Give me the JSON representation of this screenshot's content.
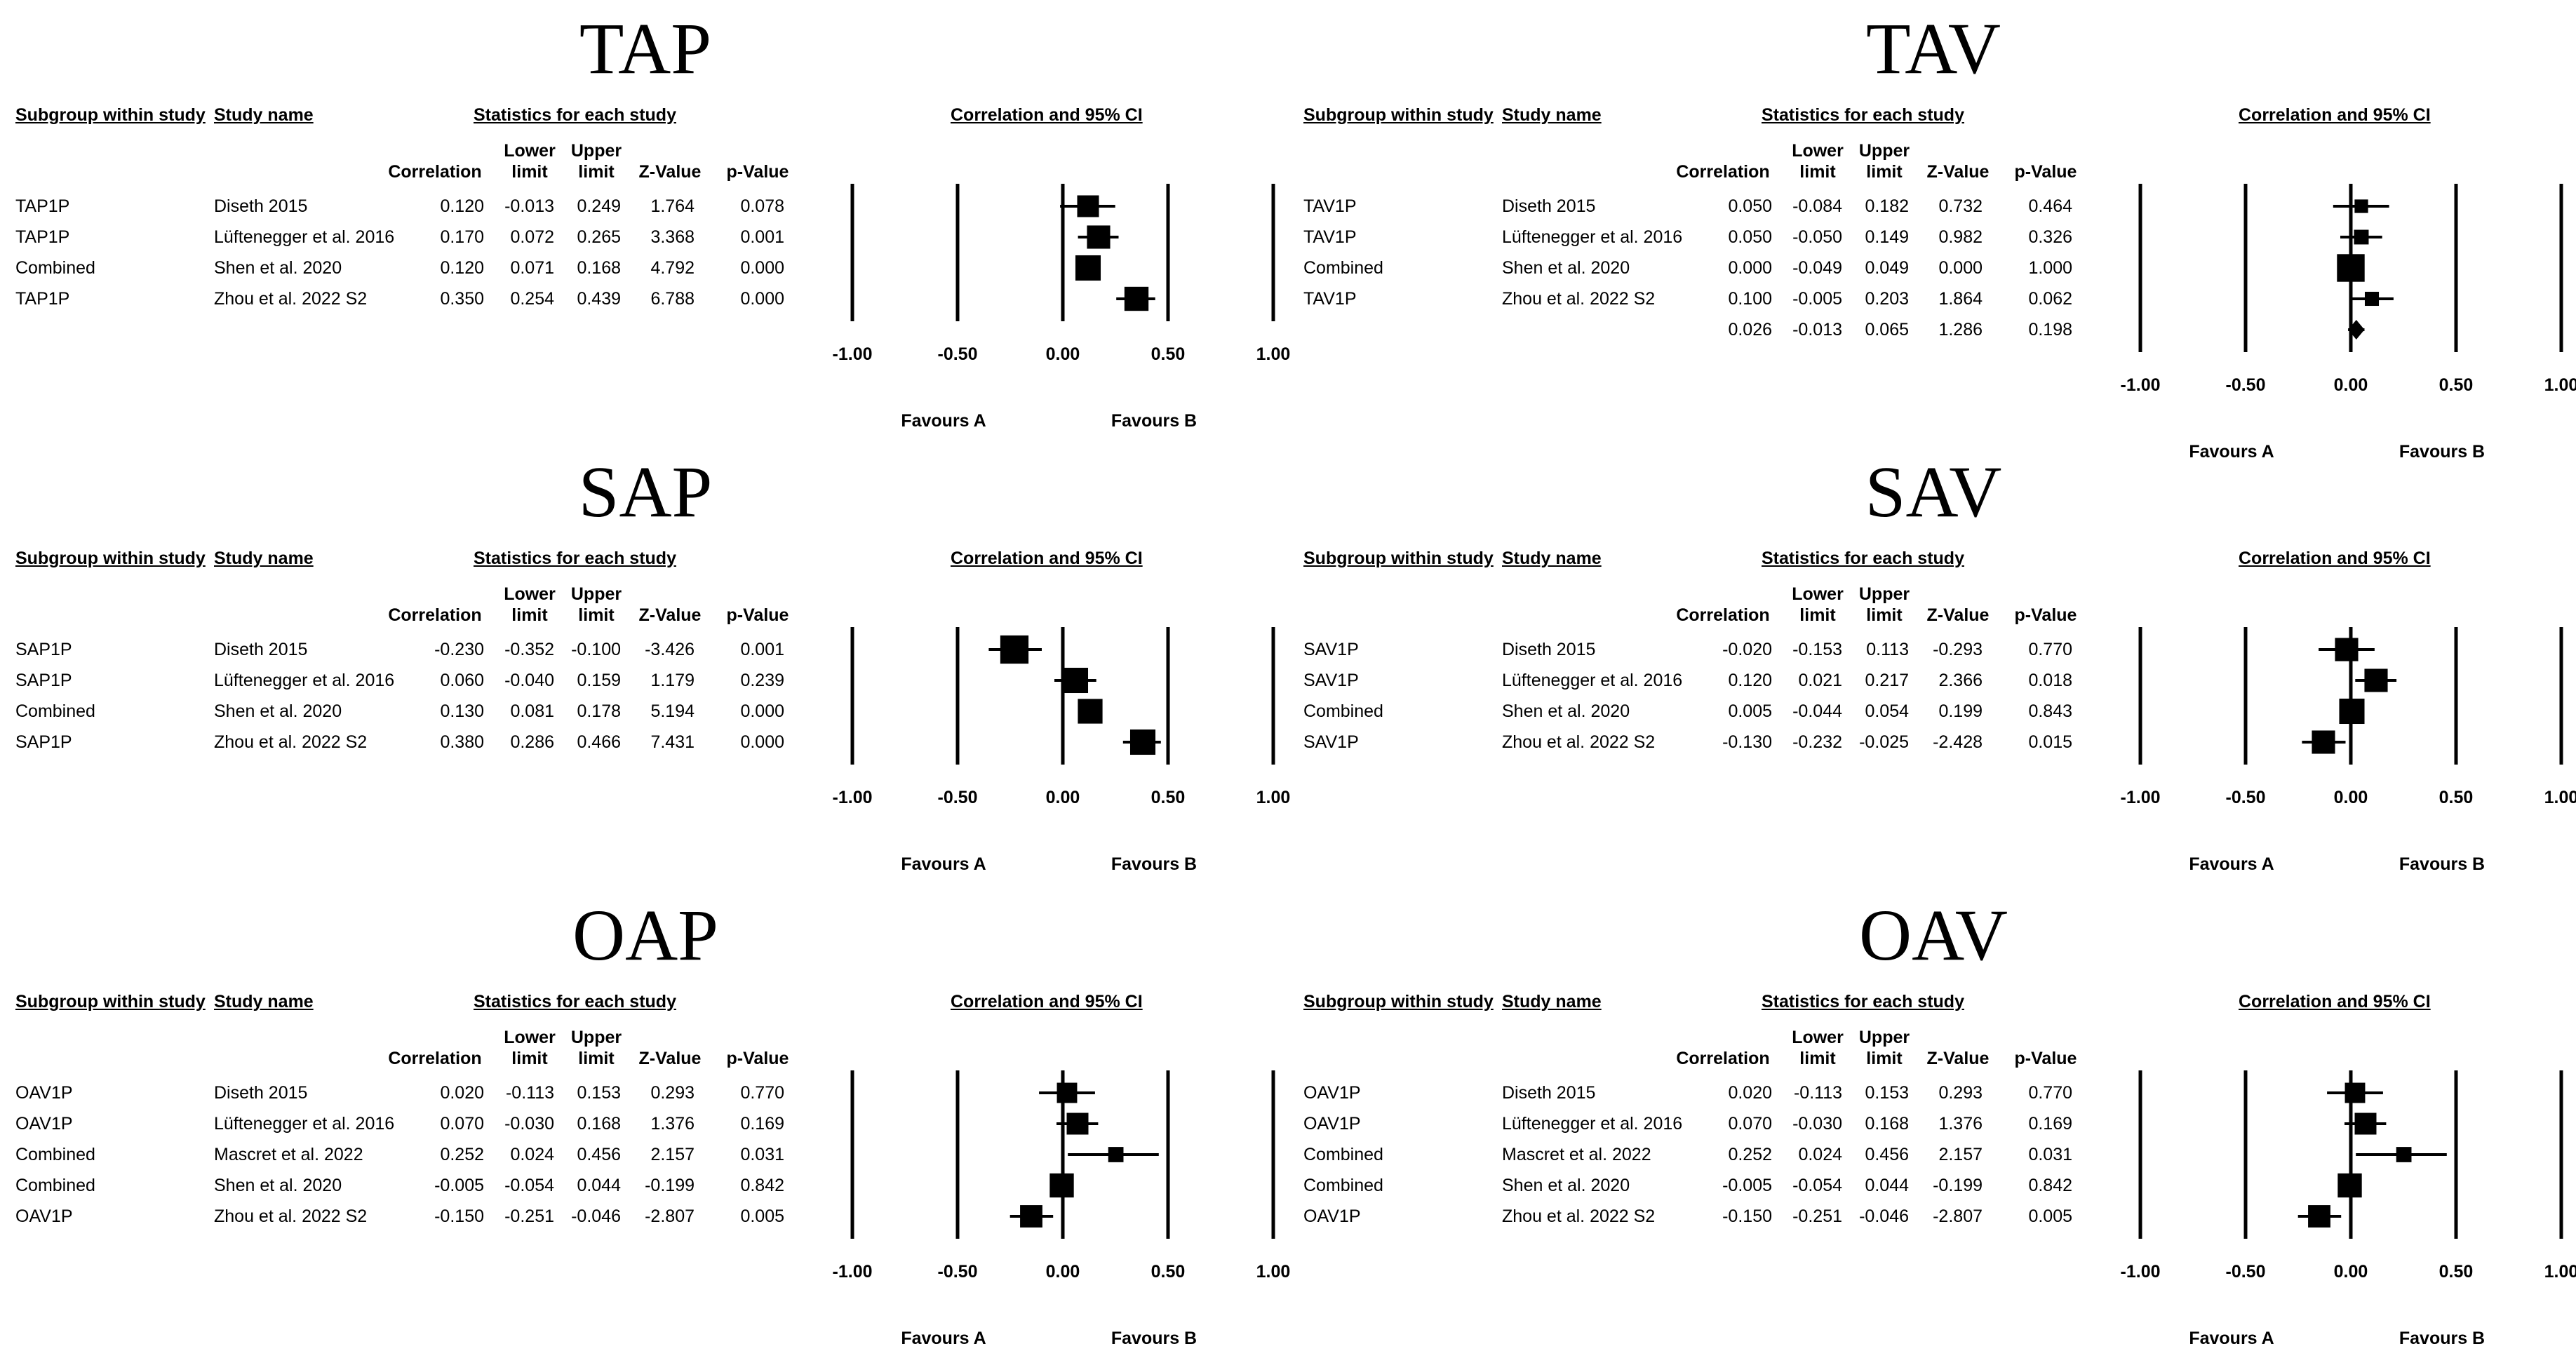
{
  "headers": {
    "subgroup": "Subgroup within study",
    "study_name": "Study name",
    "statistics": "Statistics for each study",
    "correlation": "Correlation",
    "lower_limit_1": "Lower",
    "lower_limit_2": "limit",
    "upper_limit_1": "Upper",
    "upper_limit_2": "limit",
    "z_value": "Z-Value",
    "p_value": "p-Value",
    "ci_title": "Correlation and 95% CI",
    "favours_a": "Favours A",
    "favours_b": "Favours B"
  },
  "axis_ticks": [
    "-1.00",
    "-0.50",
    "0.00",
    "0.50",
    "1.00"
  ],
  "chart_data": [
    {
      "type": "forest",
      "title": "TAP",
      "xlim": [
        -1,
        1
      ],
      "rows": [
        {
          "subgroup": "TAP1P",
          "study": "Diseth 2015",
          "correlation": "0.120",
          "lower": "-0.013",
          "upper": "0.249",
          "z": "1.764",
          "p": "0.078",
          "value": 0.12,
          "ci": [
            -0.013,
            0.249
          ],
          "size": 0.5
        },
        {
          "subgroup": "TAP1P",
          "study": "Lüftenegger et al. 2016",
          "correlation": "0.170",
          "lower": "0.072",
          "upper": "0.265",
          "z": "3.368",
          "p": "0.001",
          "value": 0.17,
          "ci": [
            0.072,
            0.265
          ],
          "size": 0.55
        },
        {
          "subgroup": "Combined",
          "study": "Shen et al. 2020",
          "correlation": "0.120",
          "lower": "0.071",
          "upper": "0.168",
          "z": "4.792",
          "p": "0.000",
          "value": 0.12,
          "ci": [
            0.071,
            0.168
          ],
          "size": 0.62
        },
        {
          "subgroup": "TAP1P",
          "study": "Zhou et al. 2022 S2",
          "correlation": "0.350",
          "lower": "0.254",
          "upper": "0.439",
          "z": "6.788",
          "p": "0.000",
          "value": 0.35,
          "ci": [
            0.254,
            0.439
          ],
          "size": 0.58
        }
      ]
    },
    {
      "type": "forest",
      "title": "TAV",
      "xlim": [
        -1,
        1
      ],
      "rows": [
        {
          "subgroup": "TAV1P",
          "study": "Diseth 2015",
          "correlation": "0.050",
          "lower": "-0.084",
          "upper": "0.182",
          "z": "0.732",
          "p": "0.464",
          "value": 0.05,
          "ci": [
            -0.084,
            0.182
          ],
          "size": 0.22
        },
        {
          "subgroup": "TAV1P",
          "study": "Lüftenegger et al. 2016",
          "correlation": "0.050",
          "lower": "-0.050",
          "upper": "0.149",
          "z": "0.982",
          "p": "0.326",
          "value": 0.05,
          "ci": [
            -0.05,
            0.149
          ],
          "size": 0.26
        },
        {
          "subgroup": "Combined",
          "study": "Shen et al. 2020",
          "correlation": "0.000",
          "lower": "-0.049",
          "upper": "0.049",
          "z": "0.000",
          "p": "1.000",
          "value": 0.0,
          "ci": [
            -0.049,
            0.049
          ],
          "size": 0.7
        },
        {
          "subgroup": "TAV1P",
          "study": "Zhou et al. 2022 S2",
          "correlation": "0.100",
          "lower": "-0.005",
          "upper": "0.203",
          "z": "1.864",
          "p": "0.062",
          "value": 0.1,
          "ci": [
            -0.005,
            0.203
          ],
          "size": 0.24
        },
        {
          "subgroup": "",
          "study": "",
          "correlation": "0.026",
          "lower": "-0.013",
          "upper": "0.065",
          "z": "1.286",
          "p": "0.198",
          "value": 0.026,
          "ci": [
            -0.013,
            0.065
          ],
          "summary": true
        }
      ]
    },
    {
      "type": "forest",
      "title": "SAP",
      "xlim": [
        -1,
        1
      ],
      "rows": [
        {
          "subgroup": "SAP1P",
          "study": "Diseth 2015",
          "correlation": "-0.230",
          "lower": "-0.352",
          "upper": "-0.100",
          "z": "-3.426",
          "p": "0.001",
          "value": -0.23,
          "ci": [
            -0.352,
            -0.1
          ],
          "size": 0.72
        },
        {
          "subgroup": "SAP1P",
          "study": "Lüftenegger et al. 2016",
          "correlation": "0.060",
          "lower": "-0.040",
          "upper": "0.159",
          "z": "1.179",
          "p": "0.239",
          "value": 0.06,
          "ci": [
            -0.04,
            0.159
          ],
          "size": 0.62
        },
        {
          "subgroup": "Combined",
          "study": "Shen et al. 2020",
          "correlation": "0.130",
          "lower": "0.081",
          "upper": "0.178",
          "z": "5.194",
          "p": "0.000",
          "value": 0.13,
          "ci": [
            0.081,
            0.178
          ],
          "size": 0.6
        },
        {
          "subgroup": "SAP1P",
          "study": "Zhou et al. 2022 S2",
          "correlation": "0.380",
          "lower": "0.286",
          "upper": "0.466",
          "z": "7.431",
          "p": "0.000",
          "value": 0.38,
          "ci": [
            0.286,
            0.466
          ],
          "size": 0.62
        }
      ]
    },
    {
      "type": "forest",
      "title": "SAV",
      "xlim": [
        -1,
        1
      ],
      "rows": [
        {
          "subgroup": "SAV1P",
          "study": "Diseth 2015",
          "correlation": "-0.020",
          "lower": "-0.153",
          "upper": "0.113",
          "z": "-0.293",
          "p": "0.770",
          "value": -0.02,
          "ci": [
            -0.153,
            0.113
          ],
          "size": 0.55
        },
        {
          "subgroup": "SAV1P",
          "study": "Lüftenegger et al. 2016",
          "correlation": "0.120",
          "lower": "0.021",
          "upper": "0.217",
          "z": "2.366",
          "p": "0.018",
          "value": 0.12,
          "ci": [
            0.021,
            0.217
          ],
          "size": 0.55
        },
        {
          "subgroup": "Combined",
          "study": "Shen et al. 2020",
          "correlation": "0.005",
          "lower": "-0.044",
          "upper": "0.054",
          "z": "0.199",
          "p": "0.843",
          "value": 0.005,
          "ci": [
            -0.044,
            0.054
          ],
          "size": 0.62
        },
        {
          "subgroup": "SAV1P",
          "study": "Zhou et al. 2022 S2",
          "correlation": "-0.130",
          "lower": "-0.232",
          "upper": "-0.025",
          "z": "-2.428",
          "p": "0.015",
          "value": -0.13,
          "ci": [
            -0.232,
            -0.025
          ],
          "size": 0.55
        }
      ]
    },
    {
      "type": "forest",
      "title": "OAP",
      "xlim": [
        -1,
        1
      ],
      "rows": [
        {
          "subgroup": "OAV1P",
          "study": "Diseth 2015",
          "correlation": "0.020",
          "lower": "-0.113",
          "upper": "0.153",
          "z": "0.293",
          "p": "0.770",
          "value": 0.02,
          "ci": [
            -0.113,
            0.153
          ],
          "size": 0.45
        },
        {
          "subgroup": "OAV1P",
          "study": "Lüftenegger et al. 2016",
          "correlation": "0.070",
          "lower": "-0.030",
          "upper": "0.168",
          "z": "1.376",
          "p": "0.169",
          "value": 0.07,
          "ci": [
            -0.03,
            0.168
          ],
          "size": 0.5
        },
        {
          "subgroup": "Combined",
          "study": "Mascret et al. 2022",
          "correlation": "0.252",
          "lower": "0.024",
          "upper": "0.456",
          "z": "2.157",
          "p": "0.031",
          "value": 0.252,
          "ci": [
            0.024,
            0.456
          ],
          "size": 0.28
        },
        {
          "subgroup": "Combined",
          "study": "Shen et al. 2020",
          "correlation": "-0.005",
          "lower": "-0.054",
          "upper": "0.044",
          "z": "-0.199",
          "p": "0.842",
          "value": -0.005,
          "ci": [
            -0.054,
            0.044
          ],
          "size": 0.58
        },
        {
          "subgroup": "OAV1P",
          "study": "Zhou et al. 2022 S2",
          "correlation": "-0.150",
          "lower": "-0.251",
          "upper": "-0.046",
          "z": "-2.807",
          "p": "0.005",
          "value": -0.15,
          "ci": [
            -0.251,
            -0.046
          ],
          "size": 0.52
        }
      ]
    },
    {
      "type": "forest",
      "title": "OAV",
      "xlim": [
        -1,
        1
      ],
      "rows": [
        {
          "subgroup": "OAV1P",
          "study": "Diseth 2015",
          "correlation": "0.020",
          "lower": "-0.113",
          "upper": "0.153",
          "z": "0.293",
          "p": "0.770",
          "value": 0.02,
          "ci": [
            -0.113,
            0.153
          ],
          "size": 0.45
        },
        {
          "subgroup": "OAV1P",
          "study": "Lüftenegger et al. 2016",
          "correlation": "0.070",
          "lower": "-0.030",
          "upper": "0.168",
          "z": "1.376",
          "p": "0.169",
          "value": 0.07,
          "ci": [
            -0.03,
            0.168
          ],
          "size": 0.5
        },
        {
          "subgroup": "Combined",
          "study": "Mascret et al. 2022",
          "correlation": "0.252",
          "lower": "0.024",
          "upper": "0.456",
          "z": "2.157",
          "p": "0.031",
          "value": 0.252,
          "ci": [
            0.024,
            0.456
          ],
          "size": 0.28
        },
        {
          "subgroup": "Combined",
          "study": "Shen et al. 2020",
          "correlation": "-0.005",
          "lower": "-0.054",
          "upper": "0.044",
          "z": "-0.199",
          "p": "0.842",
          "value": -0.005,
          "ci": [
            -0.054,
            0.044
          ],
          "size": 0.58
        },
        {
          "subgroup": "OAV1P",
          "study": "Zhou et al. 2022 S2",
          "correlation": "-0.150",
          "lower": "-0.251",
          "upper": "-0.046",
          "z": "-2.807",
          "p": "0.005",
          "value": -0.15,
          "ci": [
            -0.251,
            -0.046
          ],
          "size": 0.52
        }
      ]
    }
  ]
}
